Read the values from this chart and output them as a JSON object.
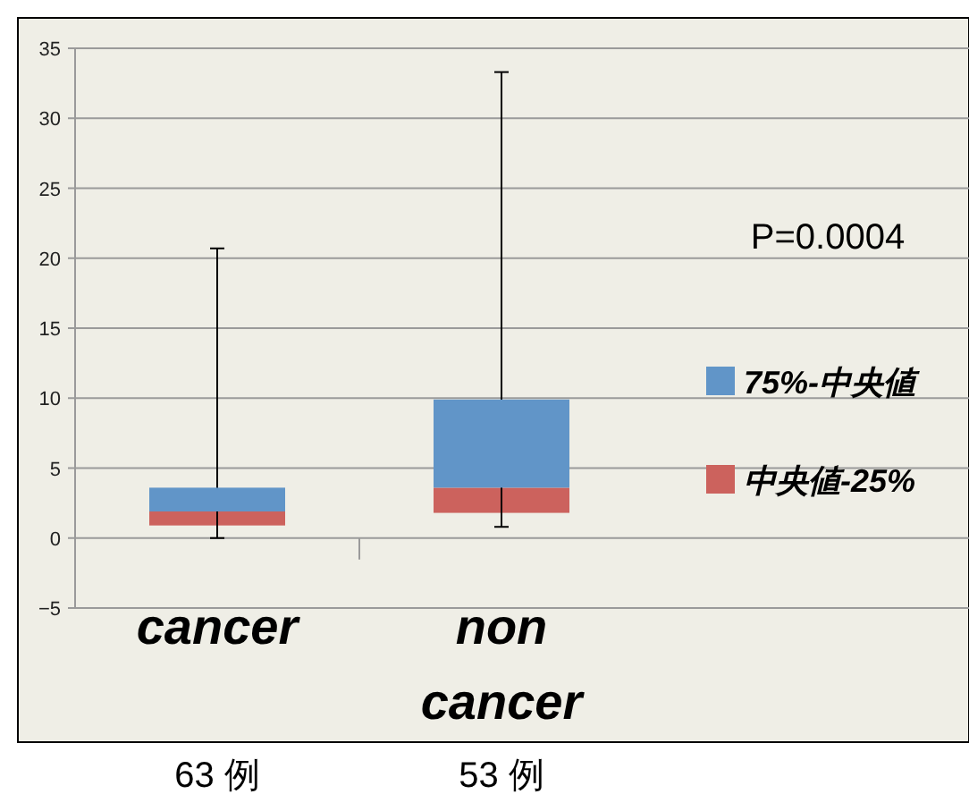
{
  "chart_data": {
    "type": "bar",
    "categories": [
      "cancer",
      "non cancer"
    ],
    "series": [
      {
        "name": "中央値-25%",
        "color": "#cc625d",
        "base": [
          0.9,
          1.8
        ],
        "values": [
          1.0,
          1.8
        ]
      },
      {
        "name": "75%-中央値",
        "color": "#6195c8",
        "base": [
          1.9,
          3.6
        ],
        "values": [
          1.7,
          6.3
        ],
        "errors": [
          [
            0,
            20.7
          ],
          [
            0.8,
            33.3
          ]
        ]
      }
    ],
    "ylim": [
      -5,
      35
    ],
    "yticks": [
      -5,
      0,
      5,
      10,
      15,
      20,
      25,
      30,
      35
    ],
    "grid": "y",
    "legend": "right",
    "annotations": [
      "P=0.0004",
      "63 例",
      "53 例"
    ]
  }
}
